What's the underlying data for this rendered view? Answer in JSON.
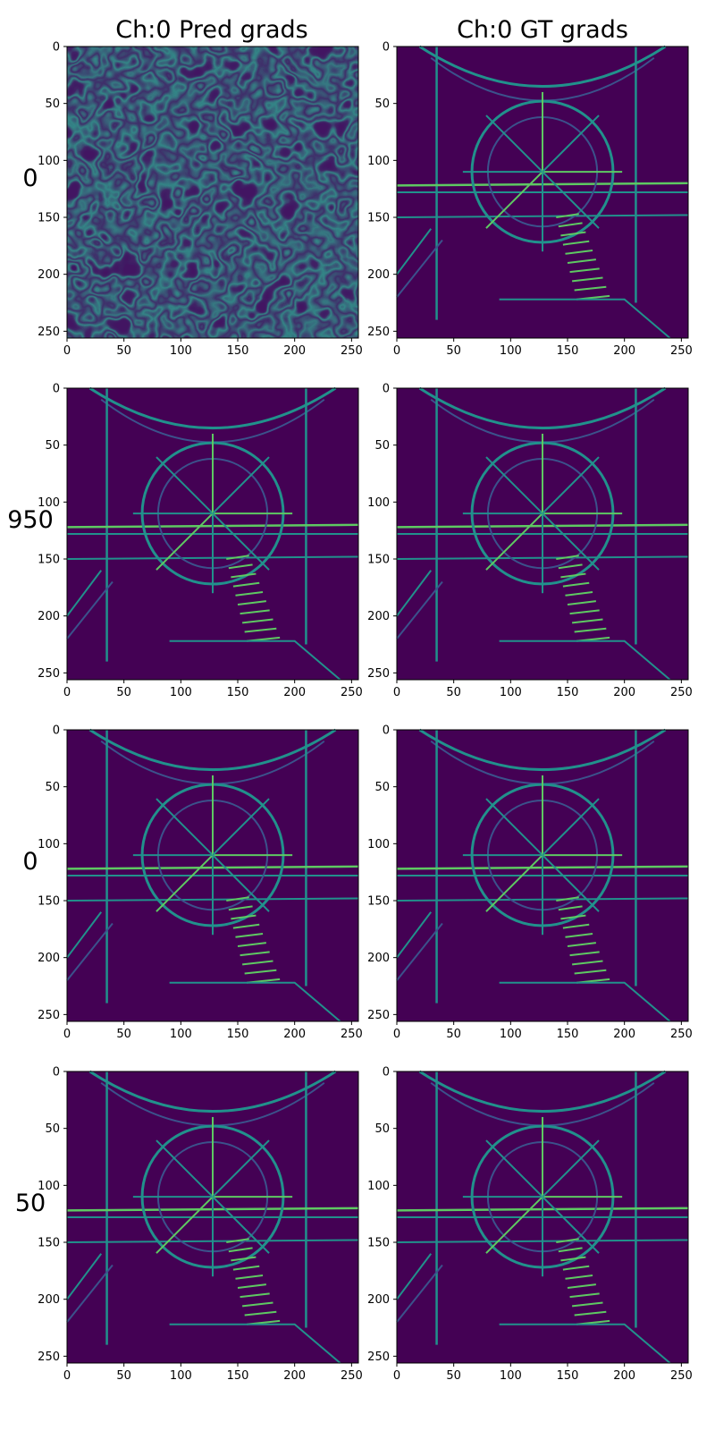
{
  "figure": {
    "column_titles": [
      "Ch:0 Pred grads",
      "Ch:0 GT grads"
    ],
    "row_labels": [
      "0",
      "950",
      "0",
      "50"
    ]
  },
  "colors": {
    "viridis_dark": "#440154",
    "viridis_blue": "#3b528b",
    "viridis_teal": "#21918c",
    "viridis_green": "#5ec962",
    "viridis_yellow": "#fde725"
  },
  "chart_data": [
    {
      "type": "heatmap",
      "row": 0,
      "col": 0,
      "title": "Ch:0 Pred grads",
      "row_label": "0",
      "content": "noise",
      "colormap": "viridis",
      "xlim": [
        0,
        256
      ],
      "ylim": [
        256,
        0
      ],
      "xticks": [
        0,
        50,
        100,
        150,
        200,
        250
      ],
      "yticks": [
        0,
        50,
        100,
        150,
        200,
        250
      ],
      "xtick_labels": [
        "0",
        "50",
        "100",
        "150",
        "200",
        "250"
      ],
      "ytick_labels": [
        "0",
        "50",
        "100",
        "150",
        "200",
        "250"
      ]
    },
    {
      "type": "heatmap",
      "row": 0,
      "col": 1,
      "title": "Ch:0 GT grads",
      "content": "ship-wheel-edges",
      "colormap": "viridis",
      "xlim": [
        0,
        256
      ],
      "ylim": [
        256,
        0
      ],
      "xticks": [
        0,
        50,
        100,
        150,
        200,
        250
      ],
      "yticks": [
        0,
        50,
        100,
        150,
        200,
        250
      ],
      "xtick_labels": [
        "0",
        "50",
        "100",
        "150",
        "200",
        "250"
      ],
      "ytick_labels": [
        "0",
        "50",
        "100",
        "150",
        "200",
        "250"
      ]
    },
    {
      "type": "heatmap",
      "row": 1,
      "col": 0,
      "row_label": "950",
      "content": "ship-wheel-edges",
      "colormap": "viridis",
      "xlim": [
        0,
        256
      ],
      "ylim": [
        256,
        0
      ],
      "xticks": [
        0,
        50,
        100,
        150,
        200,
        250
      ],
      "yticks": [
        0,
        50,
        100,
        150,
        200,
        250
      ],
      "xtick_labels": [
        "0",
        "50",
        "100",
        "150",
        "200",
        "250"
      ],
      "ytick_labels": [
        "0",
        "50",
        "100",
        "150",
        "200",
        "250"
      ]
    },
    {
      "type": "heatmap",
      "row": 1,
      "col": 1,
      "content": "ship-wheel-edges",
      "colormap": "viridis",
      "xlim": [
        0,
        256
      ],
      "ylim": [
        256,
        0
      ],
      "xticks": [
        0,
        50,
        100,
        150,
        200,
        250
      ],
      "yticks": [
        0,
        50,
        100,
        150,
        200,
        250
      ],
      "xtick_labels": [
        "0",
        "50",
        "100",
        "150",
        "200",
        "250"
      ],
      "ytick_labels": [
        "0",
        "50",
        "100",
        "150",
        "200",
        "250"
      ]
    },
    {
      "type": "heatmap",
      "row": 2,
      "col": 0,
      "row_label": "0",
      "content": "ship-wheel-edges",
      "colormap": "viridis",
      "xlim": [
        0,
        256
      ],
      "ylim": [
        256,
        0
      ],
      "xticks": [
        0,
        50,
        100,
        150,
        200,
        250
      ],
      "yticks": [
        0,
        50,
        100,
        150,
        200,
        250
      ],
      "xtick_labels": [
        "0",
        "50",
        "100",
        "150",
        "200",
        "250"
      ],
      "ytick_labels": [
        "0",
        "50",
        "100",
        "150",
        "200",
        "250"
      ]
    },
    {
      "type": "heatmap",
      "row": 2,
      "col": 1,
      "content": "ship-wheel-edges",
      "colormap": "viridis",
      "xlim": [
        0,
        256
      ],
      "ylim": [
        256,
        0
      ],
      "xticks": [
        0,
        50,
        100,
        150,
        200,
        250
      ],
      "yticks": [
        0,
        50,
        100,
        150,
        200,
        250
      ],
      "xtick_labels": [
        "0",
        "50",
        "100",
        "150",
        "200",
        "250"
      ],
      "ytick_labels": [
        "0",
        "50",
        "100",
        "150",
        "200",
        "250"
      ]
    },
    {
      "type": "heatmap",
      "row": 3,
      "col": 0,
      "row_label": "50",
      "content": "ship-wheel-edges",
      "colormap": "viridis",
      "xlim": [
        0,
        256
      ],
      "ylim": [
        256,
        0
      ],
      "xticks": [
        0,
        50,
        100,
        150,
        200,
        250
      ],
      "yticks": [
        0,
        50,
        100,
        150,
        200,
        250
      ],
      "xtick_labels": [
        "0",
        "50",
        "100",
        "150",
        "200",
        "250"
      ],
      "ytick_labels": [
        "0",
        "50",
        "100",
        "150",
        "200",
        "250"
      ]
    },
    {
      "type": "heatmap",
      "row": 3,
      "col": 1,
      "content": "ship-wheel-edges",
      "colormap": "viridis",
      "xlim": [
        0,
        256
      ],
      "ylim": [
        256,
        0
      ],
      "xticks": [
        0,
        50,
        100,
        150,
        200,
        250
      ],
      "yticks": [
        0,
        50,
        100,
        150,
        200,
        250
      ],
      "xtick_labels": [
        "0",
        "50",
        "100",
        "150",
        "200",
        "250"
      ],
      "ytick_labels": [
        "0",
        "50",
        "100",
        "150",
        "200",
        "250"
      ]
    }
  ]
}
